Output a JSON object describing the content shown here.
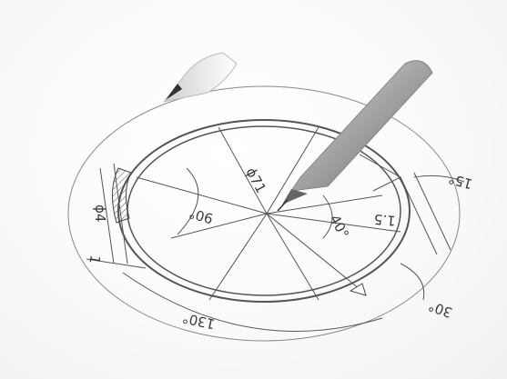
{
  "drawing": {
    "labels": {
      "diameter": "ϕ71",
      "angle_left": "90°",
      "angle_center": "40°",
      "offset": "1.5",
      "angle_top_right": "15°",
      "angle_bottom_right": "30°",
      "angle_bottom": "130°",
      "thickness_left": "ϕ4",
      "small_left": "1"
    }
  },
  "colors": {
    "line": "#4a4a4a",
    "pencil_body": "#9a9a9a",
    "pencil_highlight": "#e8e8e8",
    "background": "#ffffff"
  },
  "icons": {
    "pencil": "drafting-pencil",
    "pen": "pen-cap"
  }
}
